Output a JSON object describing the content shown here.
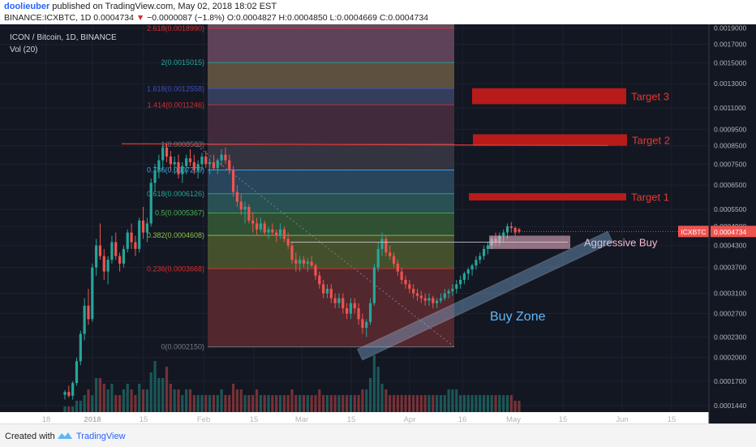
{
  "header": {
    "author": "doolieuber",
    "published_text": "published on TradingView.com, May 02, 2018 18:02 EST",
    "symbol": "BINANCE:ICXBTC, 1D",
    "last": "0.0004734",
    "change": "−0.0000087 (−1.8%)",
    "open": "O:0.0004827",
    "high": "H:0.0004850",
    "low": "L:0.0004669",
    "close": "C:0.0004734"
  },
  "footer": {
    "created": "Created with",
    "brand": "TradingView"
  },
  "chart_data": {
    "type": "candlestick",
    "title": "ICON / Bitcoin, 1D, BINANCE",
    "volume_label": "Vol (20)",
    "price_label": "ICXBTC",
    "price_value": "0.0004734",
    "y_scale": "log",
    "y_ticks": [
      "0.0019000",
      "0.0017000",
      "0.0015000",
      "0.0013000",
      "0.0011000",
      "0.0009500",
      "0.0008500",
      "0.0007500",
      "0.0006500",
      "0.0005500",
      "0.0004900",
      "0.0004300",
      "0.0003700",
      "0.0003100",
      "0.0002700",
      "0.0002300",
      "0.0002000",
      "0.0001700",
      "0.0001440"
    ],
    "x_ticks": [
      "18",
      "2018",
      "15",
      "Feb",
      "15",
      "Mar",
      "15",
      "Apr",
      "16",
      "May",
      "15",
      "Jun",
      "15"
    ],
    "fib_levels": [
      {
        "label": "2.618(0.0018990)",
        "ratio": 2.618,
        "value": 0.001899,
        "color": "#d32f2f"
      },
      {
        "label": "2(0.0015015)",
        "ratio": 2,
        "value": 0.0015015,
        "color": "#26a69a"
      },
      {
        "label": "1.618(0.0012558)",
        "ratio": 1.618,
        "value": 0.0012558,
        "color": "#3f51b5"
      },
      {
        "label": "1.414(0.0011246)",
        "ratio": 1.414,
        "value": 0.0011246,
        "color": "#d32f2f"
      },
      {
        "label": "1(0.0008583)",
        "ratio": 1,
        "value": 0.0008583,
        "color": "#787b86"
      },
      {
        "label": "0.786(0.0007206)",
        "ratio": 0.786,
        "value": 0.0007206,
        "color": "#42a5f5"
      },
      {
        "label": "0.618(0.0006126)",
        "ratio": 0.618,
        "value": 0.0006126,
        "color": "#26a69a"
      },
      {
        "label": "0.5(0.0005367)",
        "ratio": 0.5,
        "value": 0.0005367,
        "color": "#4caf50"
      },
      {
        "label": "0.382(0.0004608)",
        "ratio": 0.382,
        "value": 0.0004608,
        "color": "#8bc34a"
      },
      {
        "label": "0.236(0.0003668)",
        "ratio": 0.236,
        "value": 0.0003668,
        "color": "#d32f2f"
      },
      {
        "label": "0(0.0002150)",
        "ratio": 0,
        "value": 0.000215,
        "color": "#787b86"
      }
    ],
    "targets": [
      {
        "label": "Target 3",
        "low": 0.00113,
        "high": 0.00126
      },
      {
        "label": "Target 2",
        "low": 0.00085,
        "high": 0.00092
      },
      {
        "label": "Target 1",
        "low": 0.000585,
        "high": 0.000615
      }
    ],
    "zones": [
      {
        "label": "Aggressive Buy",
        "low": 0.00042,
        "high": 0.00046
      },
      {
        "label": "Buy Zone"
      }
    ],
    "candles": [
      [
        0.000155,
        0.00016,
        0.00015,
        0.000158
      ],
      [
        0.000158,
        0.000165,
        0.000152,
        0.000154
      ],
      [
        0.000154,
        0.00017,
        0.00015,
        0.000168
      ],
      [
        0.000168,
        0.0002,
        0.000165,
        0.000195
      ],
      [
        0.000195,
        0.00024,
        0.00019,
        0.000235
      ],
      [
        0.000235,
        0.0003,
        0.000225,
        0.000285
      ],
      [
        0.000285,
        0.00032,
        0.00025,
        0.00026
      ],
      [
        0.00026,
        0.00038,
        0.000255,
        0.00037
      ],
      [
        0.00037,
        0.00045,
        0.00035,
        0.00043
      ],
      [
        0.00043,
        0.0005,
        0.00039,
        0.0004
      ],
      [
        0.0004,
        0.00042,
        0.00034,
        0.00036
      ],
      [
        0.00036,
        0.0004,
        0.00033,
        0.00039
      ],
      [
        0.00039,
        0.00046,
        0.00038,
        0.00044
      ],
      [
        0.00044,
        0.00047,
        0.00039,
        0.0004
      ],
      [
        0.0004,
        0.00041,
        0.00036,
        0.00038
      ],
      [
        0.00038,
        0.00043,
        0.00037,
        0.00042
      ],
      [
        0.00042,
        0.00048,
        0.00041,
        0.00047
      ],
      [
        0.00047,
        0.0005,
        0.00042,
        0.00044
      ],
      [
        0.00044,
        0.00046,
        0.0004,
        0.00042
      ],
      [
        0.00042,
        0.00052,
        0.00041,
        0.00051
      ],
      [
        0.00051,
        0.00056,
        0.00045,
        0.00047
      ],
      [
        0.00047,
        0.00052,
        0.00044,
        0.0005
      ],
      [
        0.0005,
        0.00068,
        0.00049,
        0.00066
      ],
      [
        0.00066,
        0.00075,
        0.00062,
        0.00072
      ],
      [
        0.00072,
        0.0008,
        0.00068,
        0.00077
      ],
      [
        0.00077,
        0.00086,
        0.00072,
        0.00084
      ],
      [
        0.00084,
        0.000858,
        0.00076,
        0.00079
      ],
      [
        0.00079,
        0.00082,
        0.00072,
        0.00075
      ],
      [
        0.00075,
        0.00079,
        0.0007,
        0.00076
      ],
      [
        0.00076,
        0.0008,
        0.00068,
        0.0007
      ],
      [
        0.0007,
        0.00076,
        0.00066,
        0.00074
      ],
      [
        0.00074,
        0.0008,
        0.0007,
        0.00078
      ],
      [
        0.00078,
        0.00083,
        0.00074,
        0.00076
      ],
      [
        0.00076,
        0.0008,
        0.0007,
        0.00072
      ],
      [
        0.00072,
        0.00077,
        0.00068,
        0.00075
      ],
      [
        0.00075,
        0.00081,
        0.00072,
        0.00079
      ],
      [
        0.00079,
        0.00082,
        0.00073,
        0.00075
      ],
      [
        0.00075,
        0.00078,
        0.0007,
        0.00076
      ],
      [
        0.00076,
        0.0008,
        0.00072,
        0.00073
      ],
      [
        0.00073,
        0.00078,
        0.0007,
        0.00077
      ],
      [
        0.00077,
        0.00083,
        0.00074,
        0.0008
      ],
      [
        0.0008,
        0.00084,
        0.00075,
        0.00077
      ],
      [
        0.00077,
        0.0008,
        0.0007,
        0.00072
      ],
      [
        0.00072,
        0.00074,
        0.0006,
        0.00062
      ],
      [
        0.00062,
        0.00065,
        0.00056,
        0.00058
      ],
      [
        0.00058,
        0.00061,
        0.00053,
        0.00055
      ],
      [
        0.00055,
        0.00058,
        0.0005,
        0.00056
      ],
      [
        0.00056,
        0.00057,
        0.0005,
        0.00051
      ],
      [
        0.00051,
        0.00054,
        0.00047,
        0.0005
      ],
      [
        0.0005,
        0.00052,
        0.00046,
        0.00048
      ],
      [
        0.00048,
        0.00052,
        0.00047,
        0.0005
      ],
      [
        0.0005,
        0.00051,
        0.00046,
        0.00047
      ],
      [
        0.00047,
        0.00049,
        0.00045,
        0.00048
      ],
      [
        0.00048,
        0.0005,
        0.00046,
        0.00047
      ],
      [
        0.00047,
        0.00048,
        0.00044,
        0.00046
      ],
      [
        0.00046,
        0.0005,
        0.00045,
        0.00048
      ],
      [
        0.00048,
        0.00049,
        0.00044,
        0.00045
      ],
      [
        0.00045,
        0.00047,
        0.00042,
        0.00043
      ],
      [
        0.00043,
        0.00044,
        0.00038,
        0.00039
      ],
      [
        0.00039,
        0.00041,
        0.00036,
        0.00038
      ],
      [
        0.00038,
        0.0004,
        0.00036,
        0.00039
      ],
      [
        0.00039,
        0.0004,
        0.00037,
        0.00038
      ],
      [
        0.00038,
        0.000395,
        0.00036,
        0.000385
      ],
      [
        0.000385,
        0.0004,
        0.00037,
        0.000375
      ],
      [
        0.000375,
        0.00038,
        0.00034,
        0.00035
      ],
      [
        0.00035,
        0.00036,
        0.00032,
        0.00033
      ],
      [
        0.00033,
        0.00034,
        0.0003,
        0.00031
      ],
      [
        0.00031,
        0.00033,
        0.0003,
        0.00032
      ],
      [
        0.00032,
        0.00033,
        0.00029,
        0.0003
      ],
      [
        0.0003,
        0.00031,
        0.00028,
        0.00029
      ],
      [
        0.00029,
        0.00031,
        0.00028,
        0.0003
      ],
      [
        0.0003,
        0.00031,
        0.00027,
        0.00028
      ],
      [
        0.00028,
        0.00029,
        0.00026,
        0.00027
      ],
      [
        0.00027,
        0.0003,
        0.00026,
        0.00029
      ],
      [
        0.00029,
        0.0003,
        0.00027,
        0.00028
      ],
      [
        0.00028,
        0.00029,
        0.00025,
        0.00026
      ],
      [
        0.00026,
        0.00027,
        0.000235,
        0.000245
      ],
      [
        0.000245,
        0.00026,
        0.00023,
        0.000255
      ],
      [
        0.000255,
        0.0003,
        0.00025,
        0.00029
      ],
      [
        0.00029,
        0.00038,
        0.000285,
        0.00037
      ],
      [
        0.00037,
        0.00044,
        0.00036,
        0.00042
      ],
      [
        0.00042,
        0.00047,
        0.0004,
        0.00045
      ],
      [
        0.00045,
        0.00046,
        0.0004,
        0.00041
      ],
      [
        0.00041,
        0.00043,
        0.00039,
        0.0004
      ],
      [
        0.0004,
        0.00041,
        0.00037,
        0.00038
      ],
      [
        0.00038,
        0.00039,
        0.00035,
        0.00036
      ],
      [
        0.00036,
        0.00037,
        0.00033,
        0.00034
      ],
      [
        0.00034,
        0.00035,
        0.00032,
        0.00033
      ],
      [
        0.00033,
        0.00034,
        0.00031,
        0.00032
      ],
      [
        0.00032,
        0.00033,
        0.0003,
        0.00031
      ],
      [
        0.00031,
        0.00032,
        0.000295,
        0.000305
      ],
      [
        0.000305,
        0.000315,
        0.00029,
        0.0003
      ],
      [
        0.0003,
        0.00031,
        0.000285,
        0.000295
      ],
      [
        0.000295,
        0.00031,
        0.000285,
        0.0003
      ],
      [
        0.0003,
        0.000305,
        0.00028,
        0.00029
      ],
      [
        0.00029,
        0.0003,
        0.00028,
        0.000295
      ],
      [
        0.000295,
        0.00031,
        0.00029,
        0.0003
      ],
      [
        0.0003,
        0.00032,
        0.000295,
        0.00031
      ],
      [
        0.00031,
        0.00032,
        0.0003,
        0.000315
      ],
      [
        0.000315,
        0.00033,
        0.000305,
        0.00032
      ],
      [
        0.00032,
        0.00034,
        0.00031,
        0.00033
      ],
      [
        0.00033,
        0.00035,
        0.00032,
        0.00034
      ],
      [
        0.00034,
        0.00036,
        0.00033,
        0.000355
      ],
      [
        0.000355,
        0.00037,
        0.00034,
        0.000365
      ],
      [
        0.000365,
        0.00038,
        0.00035,
        0.000375
      ],
      [
        0.000375,
        0.0004,
        0.000365,
        0.00039
      ],
      [
        0.00039,
        0.00041,
        0.00038,
        0.0004
      ],
      [
        0.0004,
        0.00043,
        0.00039,
        0.00042
      ],
      [
        0.00042,
        0.00044,
        0.000405,
        0.00043
      ],
      [
        0.00043,
        0.00046,
        0.00042,
        0.00045
      ],
      [
        0.00045,
        0.00047,
        0.00043,
        0.00044
      ],
      [
        0.00044,
        0.00047,
        0.00043,
        0.00046
      ],
      [
        0.00046,
        0.00048,
        0.00044,
        0.00047
      ],
      [
        0.00047,
        0.0005,
        0.00045,
        0.00049
      ],
      [
        0.00049,
        0.000505,
        0.00047,
        0.000485
      ],
      [
        0.000485,
        0.00049,
        0.00046,
        0.00047
      ],
      [
        0.00048,
        0.000485,
        0.000467,
        0.000473
      ]
    ],
    "volumes": [
      1,
      1,
      1,
      2,
      2,
      3,
      4,
      3,
      6,
      6,
      5,
      4,
      5,
      3,
      3,
      4,
      5,
      4,
      3,
      5,
      4,
      4,
      7,
      9,
      6,
      6,
      8,
      5,
      4,
      4,
      3,
      4,
      4,
      3,
      3,
      3,
      3,
      3,
      3,
      3,
      4,
      3,
      3,
      5,
      4,
      4,
      3,
      3,
      3,
      4,
      3,
      3,
      3,
      3,
      3,
      3,
      3,
      3,
      4,
      3,
      3,
      3,
      3,
      3,
      3,
      4,
      3,
      3,
      3,
      3,
      3,
      3,
      3,
      3,
      3,
      3,
      4,
      4,
      6,
      10,
      8,
      5,
      4,
      3,
      3,
      3,
      3,
      3,
      3,
      3,
      3,
      3,
      3,
      3,
      3,
      3,
      3,
      3,
      4,
      4,
      4,
      3,
      3,
      3,
      3,
      3,
      3,
      3,
      3,
      3,
      3,
      3,
      3,
      3,
      3,
      2,
      2
    ]
  }
}
